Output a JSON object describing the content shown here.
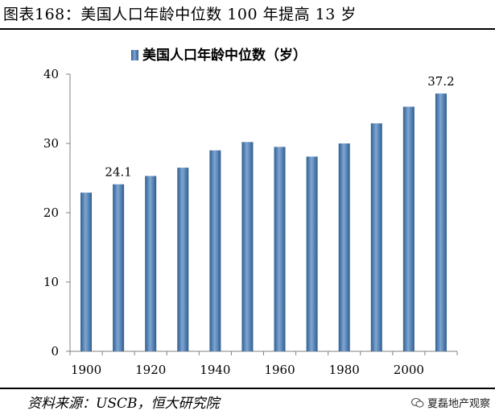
{
  "figure": {
    "title": "图表168：美国人口年龄中位数 100 年提高 13 岁",
    "source": "资料来源：USCB，恒大研究院",
    "watermark": "夏磊地产观察",
    "watermark_icon": "wechat-icon"
  },
  "colors": {
    "bar_fill": "#4f81bd",
    "bar_edge": "#2f5f8f",
    "bar_highlight": "#7fa6d4",
    "axis": "#808080"
  },
  "chart_data": {
    "type": "bar",
    "legend": "美国人口年龄中位数（岁）",
    "categories": [
      1900,
      1910,
      1920,
      1930,
      1940,
      1950,
      1960,
      1970,
      1980,
      1990,
      2000,
      2010
    ],
    "values": [
      22.9,
      24.1,
      25.3,
      26.5,
      29.0,
      30.2,
      29.5,
      28.1,
      30.0,
      32.9,
      35.3,
      37.2
    ],
    "x_tick_labels": [
      "1900",
      "1920",
      "1940",
      "1960",
      "1980",
      "2000"
    ],
    "y_ticks": [
      0,
      10,
      20,
      30,
      40
    ],
    "ylim": [
      0,
      40
    ],
    "data_labels": [
      {
        "index": 1,
        "text": "24.1"
      },
      {
        "index": 11,
        "text": "37.2"
      }
    ],
    "xlabel": "",
    "ylabel": "",
    "legend_position": "top-center"
  }
}
